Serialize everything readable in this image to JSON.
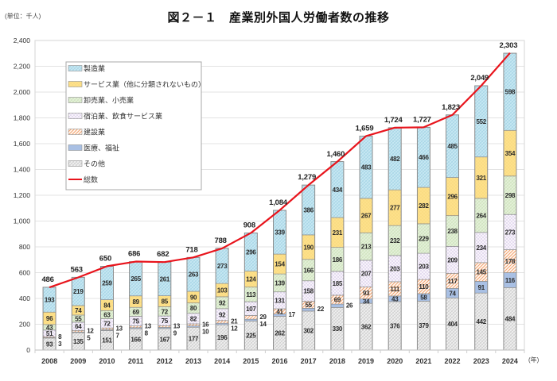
{
  "chart_data": {
    "type": "bar",
    "stacked": true,
    "title": "図２－１　産業別外国人労働者数の推移",
    "unit": "(単位：千人)",
    "xlabel": "(年)",
    "ylabel": "",
    "categories": [
      "2008",
      "2009",
      "2010",
      "2011",
      "2012",
      "2013",
      "2014",
      "2015",
      "2016",
      "2017",
      "2018",
      "2019",
      "2020",
      "2021",
      "2022",
      "2023",
      "2024"
    ],
    "ylim": [
      0,
      2400
    ],
    "yticks": [
      0,
      200,
      400,
      600,
      800,
      1000,
      1200,
      1400,
      1600,
      1800,
      2000,
      2200,
      2400
    ],
    "ytick_labels": [
      "0",
      "200",
      "400",
      "600",
      "800",
      "1,000",
      "1,200",
      "1,400",
      "1,600",
      "1,800",
      "2,000",
      "2,200",
      "2,400"
    ],
    "grid": true,
    "legend_position": "top-left",
    "series": [
      {
        "name": "製造業",
        "color": "#c6e7f2",
        "pattern_color": "#9ccfe2",
        "fill_pattern": "hatched",
        "values": [
          193,
          219,
          259,
          265,
          261,
          263,
          273,
          296,
          339,
          386,
          434,
          483,
          482,
          466,
          485,
          552,
          598
        ]
      },
      {
        "name": "サービス業（他に分類されないもの）",
        "color": "#fde08a",
        "pattern_color": "#f2cd68",
        "fill_pattern": "dotted",
        "values": [
          96,
          74,
          84,
          89,
          85,
          90,
          103,
          124,
          154,
          190,
          231,
          267,
          277,
          282,
          296,
          321,
          354
        ]
      },
      {
        "name": "卸売業、小売業",
        "color": "#e3f0d8",
        "pattern_color": "#c8dfb5",
        "fill_pattern": "hatched",
        "values": [
          43,
          55,
          63,
          69,
          72,
          80,
          92,
          113,
          139,
          166,
          186,
          213,
          232,
          229,
          238,
          264,
          298
        ]
      },
      {
        "name": "宿泊業、飲食サービス業",
        "color": "#f8f4fb",
        "pattern_color": "#9b80c8",
        "fill_pattern": "dotted",
        "values": [
          51,
          64,
          72,
          75,
          75,
          82,
          92,
          107,
          131,
          158,
          185,
          207,
          203,
          203,
          209,
          234,
          273
        ]
      },
      {
        "name": "建設業",
        "color": "#fffaf6",
        "pattern_color": "#f3a36e",
        "fill_pattern": "striped",
        "values": [
          8,
          12,
          13,
          13,
          13,
          16,
          21,
          29,
          41,
          55,
          69,
          93,
          111,
          110,
          117,
          145,
          178
        ]
      },
      {
        "name": "医療、福祉",
        "color": "#a9c0e4",
        "pattern_color": "#97b1db",
        "fill_pattern": "solid",
        "values": [
          3,
          5,
          7,
          8,
          9,
          10,
          12,
          14,
          17,
          22,
          26,
          34,
          43,
          58,
          74,
          91,
          116
        ]
      },
      {
        "name": "その他",
        "color": "#eeeeee",
        "pattern_color": "#c4c4c4",
        "fill_pattern": "hatched",
        "values": [
          93,
          135,
          151,
          166,
          167,
          177,
          196,
          225,
          262,
          302,
          330,
          362,
          376,
          379,
          404,
          442,
          484
        ]
      }
    ],
    "total": {
      "name": "総数",
      "type": "line",
      "color": "#e8141c",
      "values": [
        486,
        563,
        650,
        686,
        682,
        718,
        788,
        908,
        1084,
        1279,
        1460,
        1659,
        1724,
        1727,
        1823,
        2049,
        2303
      ],
      "labels": [
        "486",
        "563",
        "650",
        "686",
        "682",
        "718",
        "788",
        "908",
        "1,084",
        "1,279",
        "1,460",
        "1,659",
        "1,724",
        "1,727",
        "1,823",
        "2,049",
        "2,303"
      ]
    }
  }
}
